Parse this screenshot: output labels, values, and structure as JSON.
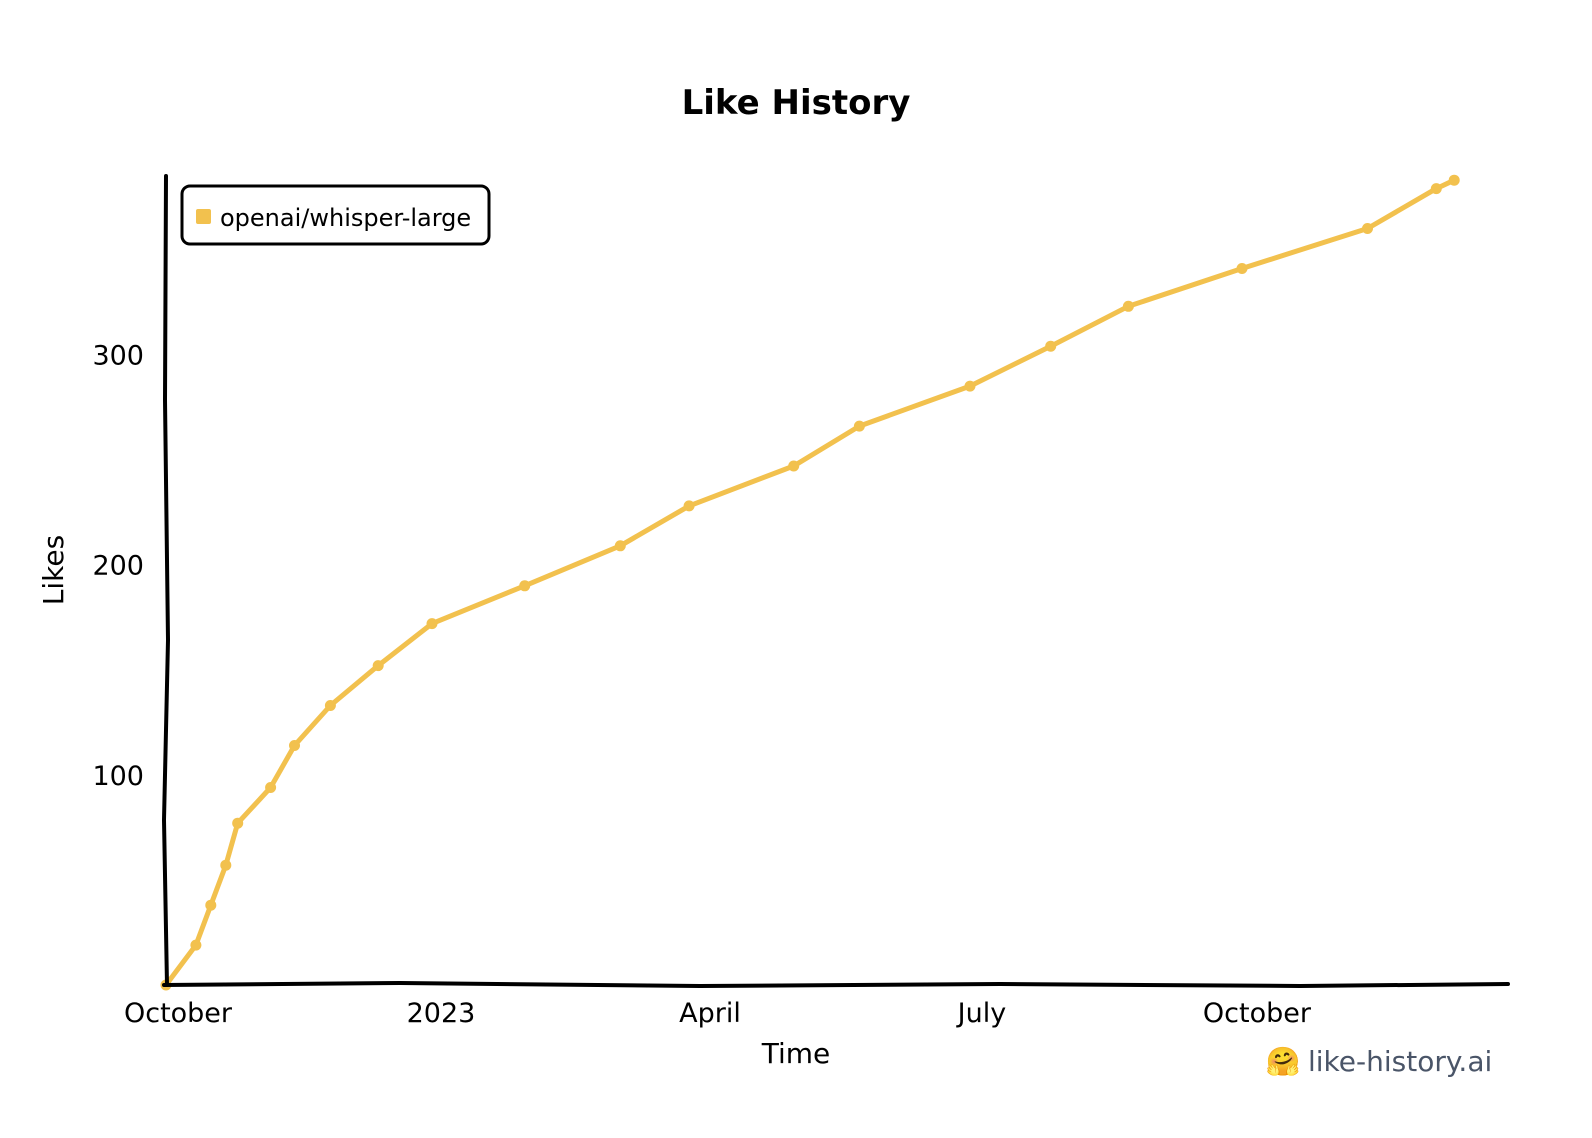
{
  "chart_data": {
    "type": "line",
    "title": "Like History",
    "xlabel": "Time",
    "ylabel": "Likes",
    "x_ticks": [
      {
        "label": "October",
        "date": "2022-10-01"
      },
      {
        "label": "2023",
        "date": "2023-01-01"
      },
      {
        "label": "April",
        "date": "2023-04-01"
      },
      {
        "label": "July",
        "date": "2023-07-01"
      },
      {
        "label": "October",
        "date": "2023-10-01"
      }
    ],
    "y_ticks": [
      100,
      200,
      300
    ],
    "xlim": [
      "2022-10-01",
      "2023-12-24"
    ],
    "ylim": [
      0,
      385
    ],
    "grid": false,
    "legend": "top-left",
    "series": [
      {
        "name": "openai/whisper-large",
        "color": "#f2c14e",
        "points": [
          {
            "x": "2022-10-01",
            "y": 0
          },
          {
            "x": "2022-10-11",
            "y": 19
          },
          {
            "x": "2022-10-16",
            "y": 38
          },
          {
            "x": "2022-10-21",
            "y": 57
          },
          {
            "x": "2022-10-25",
            "y": 77
          },
          {
            "x": "2022-11-05",
            "y": 94
          },
          {
            "x": "2022-11-13",
            "y": 114
          },
          {
            "x": "2022-11-25",
            "y": 133
          },
          {
            "x": "2022-12-11",
            "y": 152
          },
          {
            "x": "2022-12-29",
            "y": 172
          },
          {
            "x": "2023-01-29",
            "y": 190
          },
          {
            "x": "2023-03-02",
            "y": 209
          },
          {
            "x": "2023-03-25",
            "y": 228
          },
          {
            "x": "2023-04-29",
            "y": 247
          },
          {
            "x": "2023-05-21",
            "y": 266
          },
          {
            "x": "2023-06-27",
            "y": 285
          },
          {
            "x": "2023-07-24",
            "y": 304
          },
          {
            "x": "2023-08-19",
            "y": 323
          },
          {
            "x": "2023-09-26",
            "y": 341
          },
          {
            "x": "2023-11-07",
            "y": 360
          },
          {
            "x": "2023-11-30",
            "y": 379
          },
          {
            "x": "2023-12-06",
            "y": 383
          }
        ]
      }
    ]
  },
  "branding": {
    "emoji": "🤗",
    "text": "like-history.ai"
  }
}
